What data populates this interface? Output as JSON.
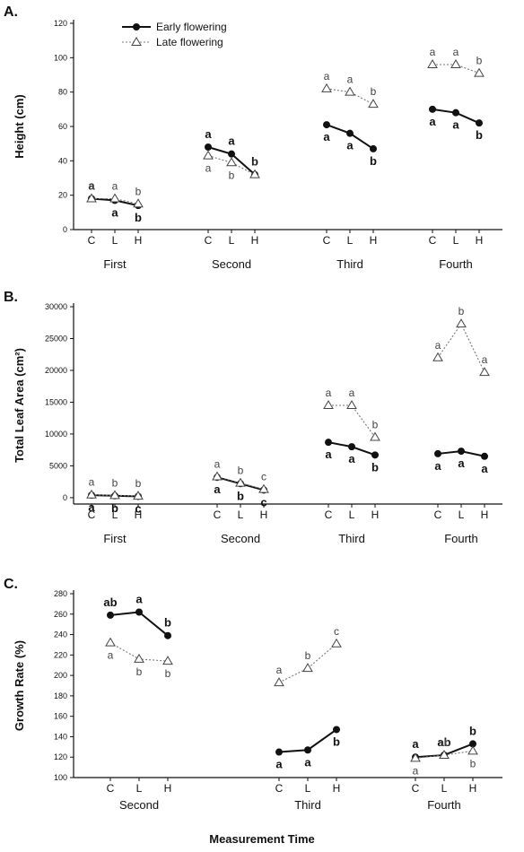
{
  "figure_xlabel": "Measurement Time",
  "legend": {
    "early": "Early flowering",
    "late": "Late flowering"
  },
  "chart_data": [
    {
      "type": "line",
      "panel": "A.",
      "ylabel": "Height (cm)",
      "ylim": [
        0,
        120
      ],
      "yticks": [
        0,
        20,
        40,
        60,
        80,
        100,
        120
      ],
      "groups": [
        "First",
        "Second",
        "Third",
        "Fourth"
      ],
      "conditions": [
        "C",
        "L",
        "H"
      ],
      "series": [
        {
          "name": "Early flowering",
          "values": [
            [
              18,
              17,
              14
            ],
            [
              48,
              44,
              32
            ],
            [
              61,
              56,
              47
            ],
            [
              70,
              68,
              62
            ]
          ],
          "letters": [
            [
              "a",
              "a",
              "b"
            ],
            [
              "a",
              "a",
              "b"
            ],
            [
              "a",
              "a",
              "b"
            ],
            [
              "a",
              "a",
              "b"
            ]
          ]
        },
        {
          "name": "Late flowering",
          "values": [
            [
              18,
              18,
              15
            ],
            [
              43,
              39,
              32
            ],
            [
              82,
              80,
              73
            ],
            [
              96,
              96,
              91
            ]
          ],
          "letters": [
            [
              "a",
              "a",
              "b"
            ],
            [
              "a",
              "b",
              "c"
            ],
            [
              "a",
              "a",
              "b"
            ],
            [
              "a",
              "a",
              "b"
            ]
          ]
        }
      ]
    },
    {
      "type": "line",
      "panel": "B.",
      "ylabel": "Total Leaf Area (cm²)",
      "ylim": [
        -1000,
        30000
      ],
      "yticks": [
        0,
        5000,
        10000,
        15000,
        20000,
        25000,
        30000
      ],
      "groups": [
        "First",
        "Second",
        "Third",
        "Fourth"
      ],
      "conditions": [
        "C",
        "L",
        "H"
      ],
      "series": [
        {
          "name": "Early flowering",
          "values": [
            [
              400,
              300,
              200
            ],
            [
              3200,
              2200,
              1200
            ],
            [
              8700,
              8000,
              6700
            ],
            [
              6900,
              7300,
              6500
            ]
          ],
          "letters": [
            [
              "a",
              "b",
              "c"
            ],
            [
              "a",
              "b",
              "c"
            ],
            [
              "a",
              "a",
              "b"
            ],
            [
              "a",
              "a",
              "a"
            ]
          ]
        },
        {
          "name": "Late flowering",
          "values": [
            [
              450,
              350,
              250
            ],
            [
              3300,
              2300,
              1300
            ],
            [
              14500,
              14500,
              9500
            ],
            [
              22000,
              27300,
              19700
            ]
          ],
          "letters": [
            [
              "a",
              "b",
              "b"
            ],
            [
              "a",
              "b",
              "c"
            ],
            [
              "a",
              "a",
              "b"
            ],
            [
              "a",
              "b",
              "a"
            ]
          ]
        }
      ]
    },
    {
      "type": "line",
      "panel": "C.",
      "ylabel": "Growth Rate (%)",
      "ylim": [
        100,
        280
      ],
      "yticks": [
        100,
        120,
        140,
        160,
        180,
        200,
        220,
        240,
        260,
        280
      ],
      "groups": [
        "Second",
        "Third",
        "Fourth"
      ],
      "conditions": [
        "C",
        "L",
        "H"
      ],
      "series": [
        {
          "name": "Early flowering",
          "values": [
            [
              259,
              262,
              239
            ],
            [
              125,
              127,
              147
            ],
            [
              120,
              122,
              133
            ]
          ],
          "letters": [
            [
              "ab",
              "a",
              "b"
            ],
            [
              "a",
              "a",
              "b"
            ],
            [
              "a",
              "ab",
              "b"
            ]
          ]
        },
        {
          "name": "Late flowering",
          "values": [
            [
              232,
              216,
              214
            ],
            [
              193,
              207,
              231
            ],
            [
              119,
              122,
              126
            ]
          ],
          "letters": [
            [
              "a",
              "b",
              "b"
            ],
            [
              "a",
              "b",
              "c"
            ],
            [
              "a",
              "ab",
              "b"
            ]
          ]
        }
      ]
    }
  ]
}
